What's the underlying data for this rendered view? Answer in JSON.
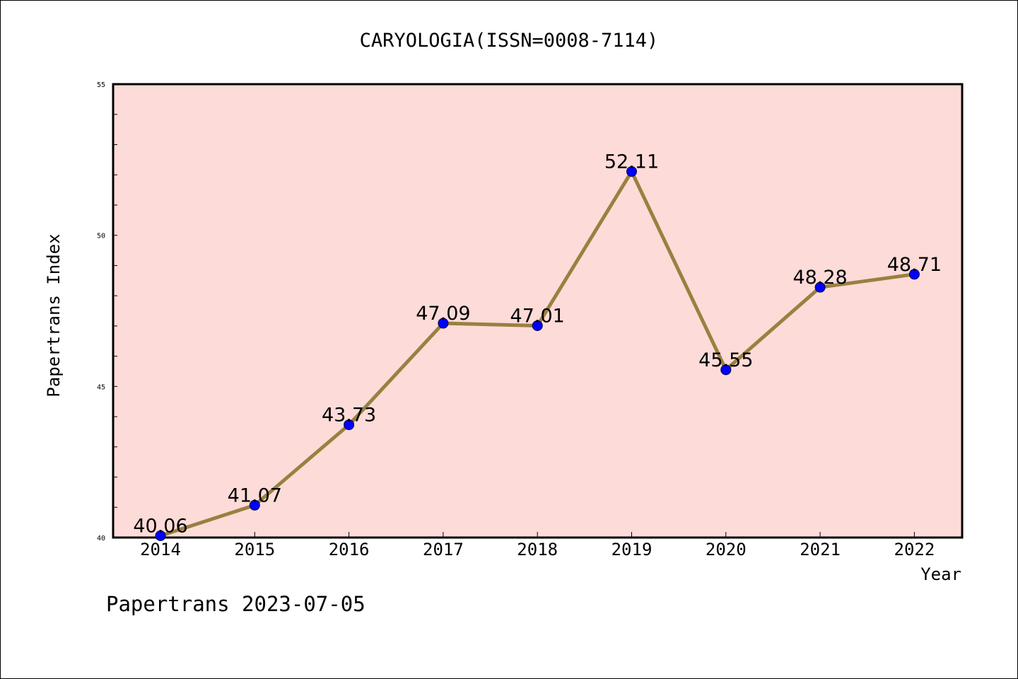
{
  "chart_data": {
    "type": "line",
    "title": "CARYOLOGIA(ISSN=0008-7114)",
    "xlabel": "Year",
    "ylabel": "Papertrans Index",
    "categories": [
      "2014",
      "2015",
      "2016",
      "2017",
      "2018",
      "2019",
      "2020",
      "2021",
      "2022"
    ],
    "series": [
      {
        "values": [
          40.06,
          41.07,
          43.73,
          47.09,
          47.01,
          52.11,
          45.55,
          48.28,
          48.71
        ],
        "labels": [
          "40.06",
          "41.07",
          "43.73",
          "47.09",
          "47.01",
          "52.11",
          "45.55",
          "48.28",
          "48.71"
        ]
      }
    ],
    "ylim": [
      40,
      55
    ],
    "yticks": [
      "40",
      "45",
      "50",
      "55"
    ],
    "y_minor_step": 1,
    "grid": false,
    "colors": {
      "plot_background": "#FDDBD8",
      "line": "#9A8040",
      "marker": "#0000FF"
    }
  },
  "footer": "Papertrans 2023-07-05"
}
